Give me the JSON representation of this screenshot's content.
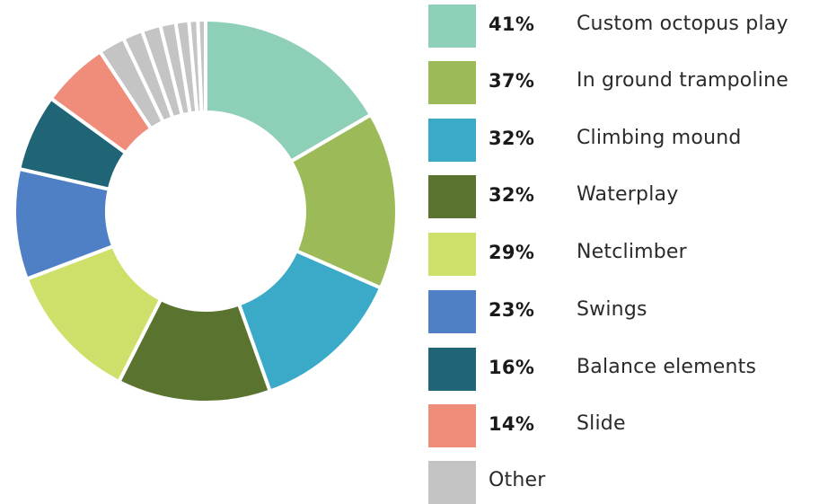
{
  "chart_data": {
    "type": "pie",
    "style": "donut",
    "legend_placement": "right",
    "slices": [
      {
        "percent": "41%",
        "label": "Custom octopus play",
        "color": "#8ecfb8",
        "value": 41
      },
      {
        "percent": "37%",
        "label": "In ground trampoline",
        "color": "#9cbb58",
        "value": 37
      },
      {
        "percent": "32%",
        "label": "Climbing mound",
        "color": "#3aaac8",
        "value": 32
      },
      {
        "percent": "32%",
        "label": "Waterplay",
        "color": "#5a7430",
        "value": 32
      },
      {
        "percent": "29%",
        "label": "Netclimber",
        "color": "#cfe06a",
        "value": 29
      },
      {
        "percent": "23%",
        "label": "Swings",
        "color": "#4f7fc4",
        "value": 23
      },
      {
        "percent": "16%",
        "label": "Balance elements",
        "color": "#1f6575",
        "value": 16
      },
      {
        "percent": "14%",
        "label": "Slide",
        "color": "#ef8c7a",
        "value": 14
      },
      {
        "percent": "",
        "label": "Other",
        "color": "#c4c4c4",
        "value": 23
      }
    ]
  }
}
